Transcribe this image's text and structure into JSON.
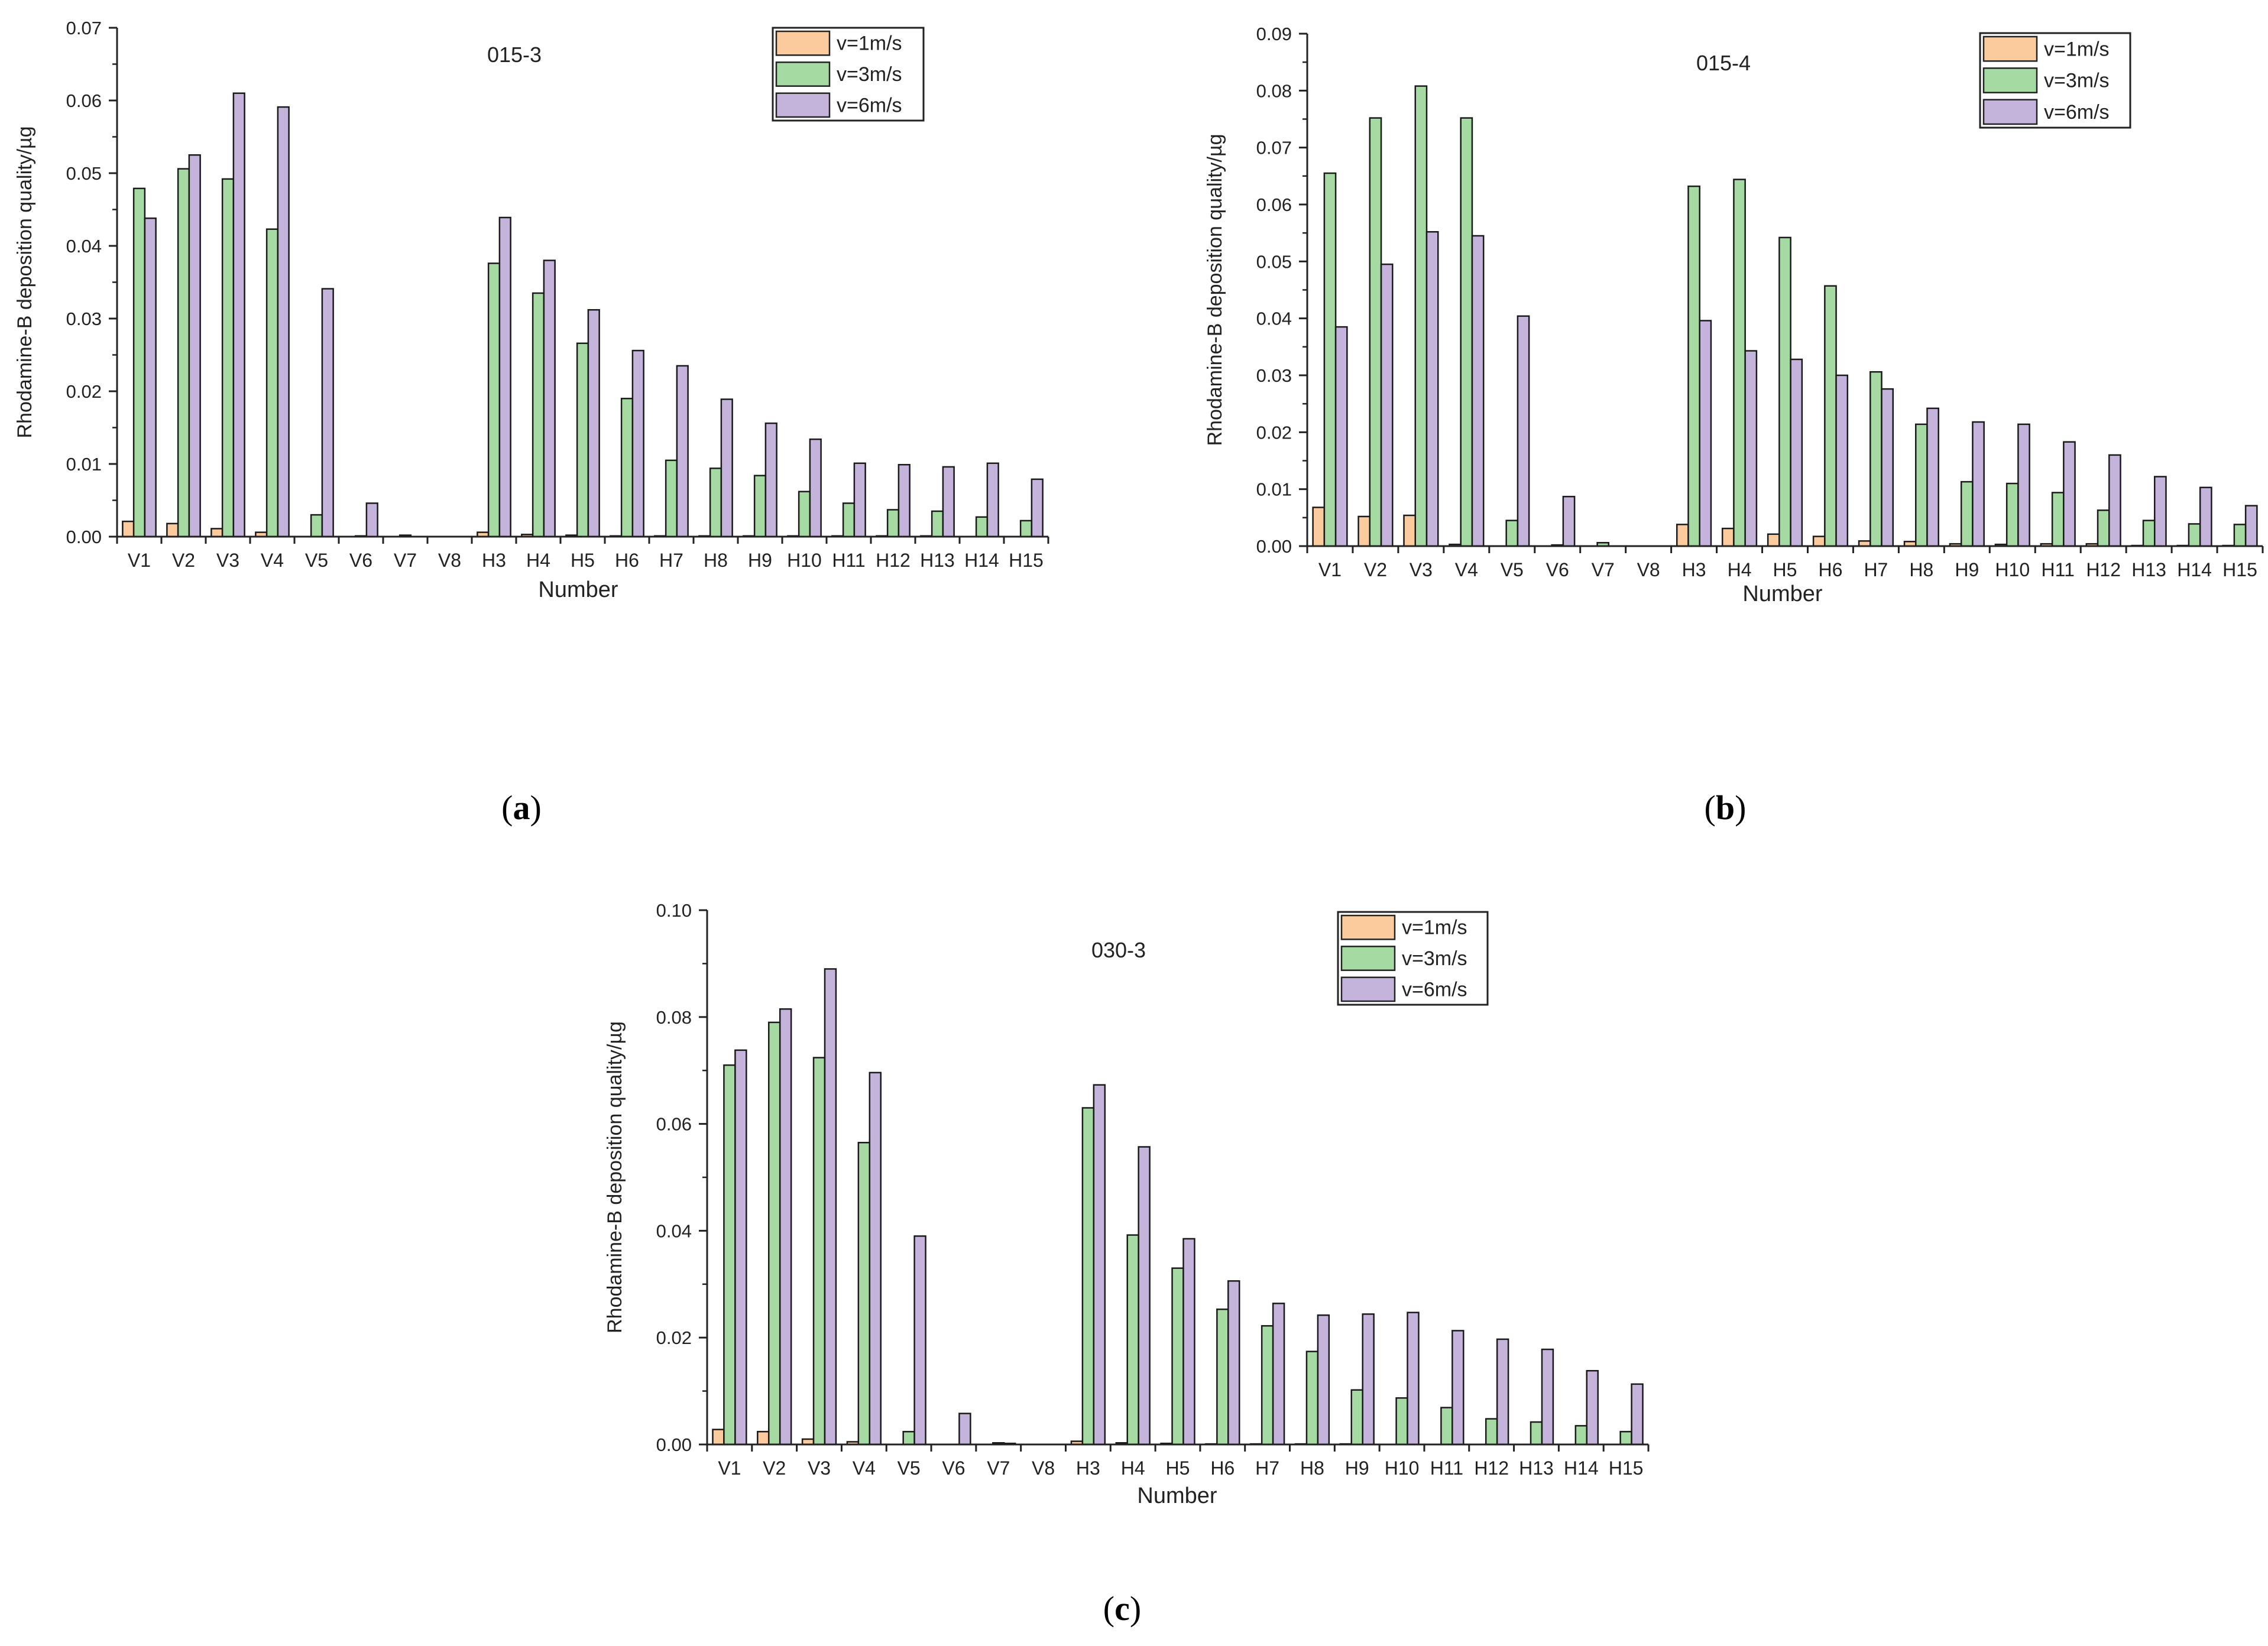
{
  "figure": {
    "legend_entries": [
      "v=1m/s",
      "v=3m/s",
      "v=6m/s"
    ],
    "series_colors": [
      "#FBCB9E",
      "#A5DBA2",
      "#C4B3DA"
    ]
  },
  "chart_data": [
    {
      "type": "bar",
      "panel_label": "(a)",
      "panel_letter": "a",
      "title": "015-3",
      "xlabel": "Number",
      "ylabel": "Rhodamine-B deposition quality/µg",
      "ylim": [
        0,
        0.07
      ],
      "yticks": [
        "0.00",
        "0.01",
        "0.02",
        "0.03",
        "0.04",
        "0.05",
        "0.06",
        "0.07"
      ],
      "legend_position": "top-right",
      "categories": [
        "V1",
        "V2",
        "V3",
        "V4",
        "V5",
        "V6",
        "V7",
        "V8",
        "H3",
        "H4",
        "H5",
        "H6",
        "H7",
        "H8",
        "H9",
        "H10",
        "H11",
        "H12",
        "H13",
        "H14",
        "H15"
      ],
      "series": [
        {
          "name": "v=1m/s",
          "color": "#FBCB9E",
          "values": [
            0.0021,
            0.0018,
            0.0011,
            0.0006,
            0,
            0,
            0,
            0,
            0.0006,
            0.0003,
            0.0002,
            0.0001,
            0.0001,
            0.0001,
            0.0001,
            0.0001,
            0.0001,
            0.0001,
            0.0001,
            0,
            0
          ]
        },
        {
          "name": "v=3m/s",
          "color": "#A5DBA2",
          "values": [
            0.0479,
            0.0506,
            0.0492,
            0.0423,
            0.003,
            0.0001,
            0.0002,
            0,
            0.0376,
            0.0335,
            0.0266,
            0.019,
            0.0105,
            0.0094,
            0.0084,
            0.0062,
            0.0046,
            0.0037,
            0.0035,
            0.0027,
            0.0022
          ]
        },
        {
          "name": "v=6m/s",
          "color": "#C4B3DA",
          "values": [
            0.0438,
            0.0525,
            0.061,
            0.0591,
            0.0341,
            0.0046,
            0,
            0,
            0.0439,
            0.038,
            0.0312,
            0.0256,
            0.0235,
            0.0189,
            0.0156,
            0.0134,
            0.0101,
            0.0099,
            0.0096,
            0.0101,
            0.0079
          ]
        }
      ]
    },
    {
      "type": "bar",
      "panel_label": "(b)",
      "panel_letter": "b",
      "title": "015-4",
      "xlabel": "Number",
      "ylabel": "Rhodamine-B deposition quality/µg",
      "ylim": [
        0,
        0.09
      ],
      "yticks": [
        "0.00",
        "0.01",
        "0.02",
        "0.03",
        "0.04",
        "0.05",
        "0.06",
        "0.07",
        "0.08",
        "0.09"
      ],
      "legend_position": "top-right",
      "categories": [
        "V1",
        "V2",
        "V3",
        "V4",
        "V5",
        "V6",
        "V7",
        "V8",
        "H3",
        "H4",
        "H5",
        "H6",
        "H7",
        "H8",
        "H9",
        "H10",
        "H11",
        "H12",
        "H13",
        "H14",
        "H15"
      ],
      "series": [
        {
          "name": "v=1m/s",
          "color": "#FBCB9E",
          "values": [
            0.0068,
            0.0052,
            0.0054,
            0.0003,
            0,
            0,
            0,
            0,
            0.0038,
            0.0031,
            0.0021,
            0.0017,
            0.0009,
            0.0008,
            0.0004,
            0.0003,
            0.0004,
            0.0004,
            0.0001,
            0.0001,
            0.0001
          ]
        },
        {
          "name": "v=3m/s",
          "color": "#A5DBA2",
          "values": [
            0.0655,
            0.0752,
            0.0808,
            0.0752,
            0.0045,
            0.0002,
            0.0006,
            0,
            0.0632,
            0.0644,
            0.0542,
            0.0457,
            0.0306,
            0.0214,
            0.0113,
            0.011,
            0.0094,
            0.0063,
            0.0045,
            0.0039,
            0.0038
          ]
        },
        {
          "name": "v=6m/s",
          "color": "#C4B3DA",
          "values": [
            0.0385,
            0.0495,
            0.0552,
            0.0545,
            0.0404,
            0.0087,
            0,
            0,
            0.0396,
            0.0343,
            0.0328,
            0.03,
            0.0276,
            0.0242,
            0.0218,
            0.0214,
            0.0183,
            0.016,
            0.0122,
            0.0103,
            0.0071
          ]
        }
      ]
    },
    {
      "type": "bar",
      "panel_label": "(c)",
      "panel_letter": "c",
      "title": "030-3",
      "xlabel": "Number",
      "ylabel": "Rhodamine-B deposition quality/µg",
      "ylim": [
        0,
        0.1
      ],
      "yticks": [
        "0.00",
        "0.02",
        "0.04",
        "0.06",
        "0.08",
        "0.10"
      ],
      "legend_position": "top-right",
      "categories": [
        "V1",
        "V2",
        "V3",
        "V4",
        "V5",
        "V6",
        "V7",
        "V8",
        "H3",
        "H4",
        "H5",
        "H6",
        "H7",
        "H8",
        "H9",
        "H10",
        "H11",
        "H12",
        "H13",
        "H14",
        "H15"
      ],
      "series": [
        {
          "name": "v=1m/s",
          "color": "#FBCB9E",
          "values": [
            0.0028,
            0.0024,
            0.001,
            0.0005,
            0,
            0,
            0,
            0,
            0.0006,
            0.0003,
            0.0002,
            0.0001,
            0.0001,
            0.0001,
            0.0001,
            0,
            0,
            0,
            0,
            0,
            0
          ]
        },
        {
          "name": "v=3m/s",
          "color": "#A5DBA2",
          "values": [
            0.071,
            0.079,
            0.0724,
            0.0565,
            0.0024,
            0,
            0.0003,
            0,
            0.063,
            0.0392,
            0.033,
            0.0253,
            0.0222,
            0.0174,
            0.0102,
            0.0087,
            0.0069,
            0.0048,
            0.0042,
            0.0035,
            0.0024
          ]
        },
        {
          "name": "v=6m/s",
          "color": "#C4B3DA",
          "values": [
            0.0738,
            0.0815,
            0.089,
            0.0696,
            0.039,
            0.0058,
            0.0002,
            0,
            0.0673,
            0.0557,
            0.0385,
            0.0306,
            0.0264,
            0.0242,
            0.0244,
            0.0247,
            0.0213,
            0.0197,
            0.0178,
            0.0138,
            0.0113
          ]
        }
      ]
    }
  ]
}
